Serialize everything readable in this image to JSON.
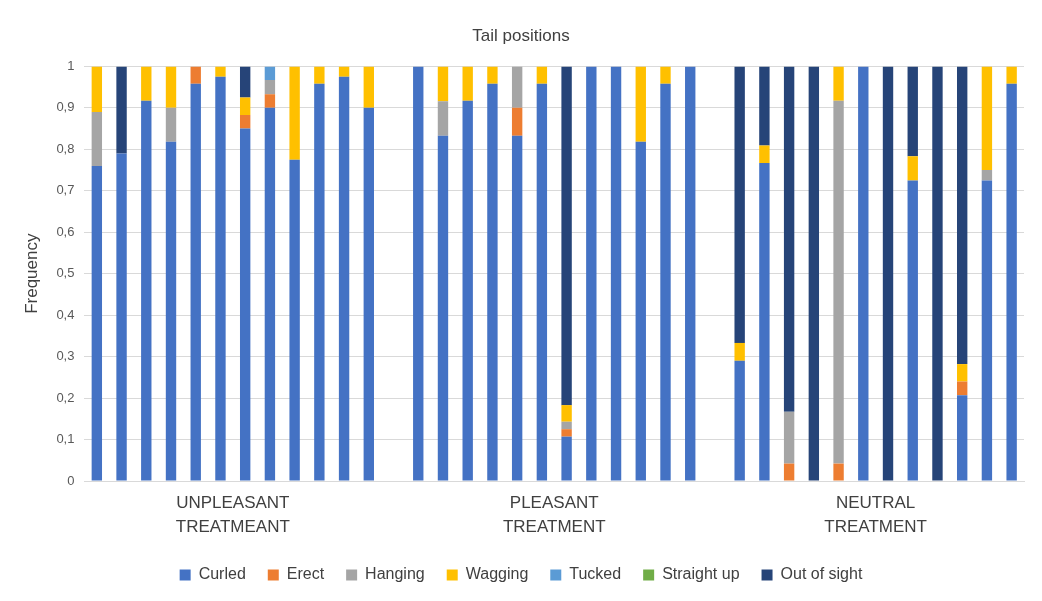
{
  "chart_data": {
    "type": "bar",
    "title": "Tail positions",
    "ylabel": "Frequency",
    "stacked": true,
    "grid": "y",
    "legend": "bottom",
    "categories": [
      null,
      null,
      null,
      null,
      null,
      null,
      null,
      null,
      null,
      null,
      null,
      null,
      null,
      null,
      null,
      null,
      null,
      null,
      null,
      null,
      null,
      null,
      null,
      null,
      null,
      null,
      null,
      null,
      null,
      null,
      null,
      null,
      null,
      null,
      null,
      null,
      null,
      null
    ],
    "ylim": [
      0,
      1
    ],
    "yticks": [
      0,
      {
        "value": 0.1,
        "label": "0,1"
      },
      {
        "value": 0.2,
        "label": "0,2"
      },
      {
        "value": 0.3,
        "label": "0,3"
      },
      {
        "value": 0.4,
        "label": "0,4"
      },
      {
        "value": 0.5,
        "label": "0,5"
      },
      {
        "value": 0.6,
        "label": "0,6"
      },
      {
        "value": 0.7,
        "label": "0,7"
      },
      {
        "value": 0.8,
        "label": "0,8"
      },
      {
        "value": 0.9,
        "label": "0,9"
      },
      1
    ],
    "annotations": [
      "UNPLEASANT TREATMEANT",
      "PLEASANT TREATMENT",
      "NEUTRAL TREATMENT"
    ],
    "series": [
      {
        "name": "Curled",
        "color": "#4472c4",
        "values": [
          0.76,
          0.79,
          0.917,
          0.818,
          0.958,
          0.975,
          0.85,
          0.9,
          0.775,
          0.958,
          0.975,
          0.9,
          null,
          1,
          0.833,
          0.917,
          0.958,
          0.833,
          0.958,
          0.107,
          1,
          1,
          0.818,
          0.958,
          1,
          null,
          0.29,
          0.767,
          null,
          null,
          null,
          1,
          null,
          0.725,
          null,
          0.207,
          0.725,
          0.958
        ]
      },
      {
        "name": "Erect",
        "color": "#ed7d31",
        "values": [
          null,
          null,
          null,
          null,
          0.042,
          null,
          0.033,
          0.033,
          null,
          null,
          null,
          null,
          null,
          null,
          null,
          null,
          null,
          0.067,
          null,
          0.018,
          null,
          null,
          null,
          null,
          null,
          null,
          null,
          null,
          0.042,
          null,
          0.042,
          null,
          null,
          null,
          null,
          0.033,
          null,
          null
        ]
      },
      {
        "name": "Hanging",
        "color": "#a5a5a5",
        "values": [
          0.13,
          null,
          null,
          0.082,
          null,
          null,
          null,
          0.034,
          null,
          null,
          null,
          null,
          null,
          null,
          0.083,
          null,
          null,
          0.1,
          null,
          0.018,
          null,
          null,
          null,
          null,
          null,
          null,
          null,
          null,
          0.125,
          null,
          0.875,
          null,
          null,
          null,
          null,
          null,
          0.025,
          null
        ]
      },
      {
        "name": "Wagging",
        "color": "#ffc000",
        "values": [
          0.11,
          null,
          0.083,
          0.1,
          null,
          0.025,
          0.042,
          null,
          0.225,
          0.042,
          0.025,
          0.1,
          null,
          null,
          0.084,
          0.083,
          0.042,
          null,
          0.042,
          0.04,
          null,
          null,
          0.182,
          0.042,
          null,
          null,
          0.043,
          0.042,
          null,
          null,
          0.083,
          null,
          null,
          0.058,
          null,
          0.042,
          0.25,
          0.042
        ]
      },
      {
        "name": "Tucked",
        "color": "#5b9bd5",
        "values": [
          null,
          null,
          null,
          null,
          null,
          null,
          null,
          0.033,
          null,
          null,
          null,
          null,
          null,
          null,
          null,
          null,
          null,
          null,
          null,
          null,
          null,
          null,
          null,
          null,
          null,
          null,
          null,
          null,
          null,
          null,
          null,
          null,
          null,
          null,
          null,
          null,
          null,
          null
        ]
      },
      {
        "name": "Straight up",
        "color": "#70ad47",
        "values": [
          null,
          null,
          null,
          null,
          null,
          null,
          null,
          null,
          null,
          null,
          null,
          null,
          null,
          null,
          null,
          null,
          null,
          null,
          null,
          null,
          null,
          null,
          null,
          null,
          null,
          null,
          null,
          null,
          null,
          null,
          null,
          null,
          null,
          null,
          null,
          null,
          null,
          null
        ]
      },
      {
        "name": "Out of sight",
        "color": "#264478",
        "values": [
          null,
          0.21,
          null,
          null,
          null,
          null,
          0.075,
          null,
          null,
          null,
          null,
          null,
          null,
          null,
          null,
          null,
          null,
          null,
          null,
          0.817,
          null,
          null,
          null,
          null,
          null,
          null,
          0.667,
          0.191,
          0.833,
          1,
          null,
          null,
          1,
          0.217,
          1,
          0.718,
          null,
          null
        ]
      }
    ]
  }
}
